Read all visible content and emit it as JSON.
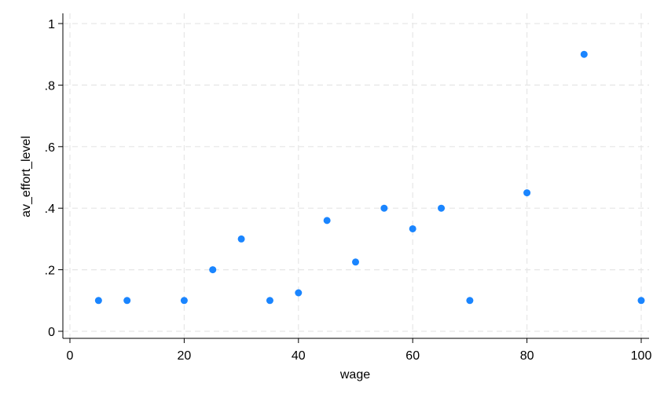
{
  "chart_data": {
    "type": "scatter",
    "xlabel": "wage",
    "ylabel": "av_effort_level",
    "xlim": [
      0,
      100
    ],
    "ylim": [
      0,
      1
    ],
    "x_ticks": [
      0,
      20,
      40,
      60,
      80,
      100
    ],
    "x_tick_labels": [
      "0",
      "20",
      "40",
      "60",
      "80",
      "100"
    ],
    "y_ticks": [
      0,
      0.2,
      0.4,
      0.6,
      0.8,
      1
    ],
    "y_tick_labels": [
      "0",
      ".2",
      ".4",
      ".6",
      ".8",
      "1"
    ],
    "grid": true,
    "marker_color": "#1a85ff",
    "points": [
      {
        "x": 5,
        "y": 0.1
      },
      {
        "x": 10,
        "y": 0.1
      },
      {
        "x": 20,
        "y": 0.1
      },
      {
        "x": 25,
        "y": 0.2
      },
      {
        "x": 30,
        "y": 0.3
      },
      {
        "x": 35,
        "y": 0.1
      },
      {
        "x": 40,
        "y": 0.125
      },
      {
        "x": 45,
        "y": 0.36
      },
      {
        "x": 50,
        "y": 0.225
      },
      {
        "x": 55,
        "y": 0.4
      },
      {
        "x": 60,
        "y": 0.333
      },
      {
        "x": 65,
        "y": 0.4
      },
      {
        "x": 70,
        "y": 0.1
      },
      {
        "x": 80,
        "y": 0.45
      },
      {
        "x": 90,
        "y": 0.9
      },
      {
        "x": 100,
        "y": 0.1
      }
    ]
  }
}
